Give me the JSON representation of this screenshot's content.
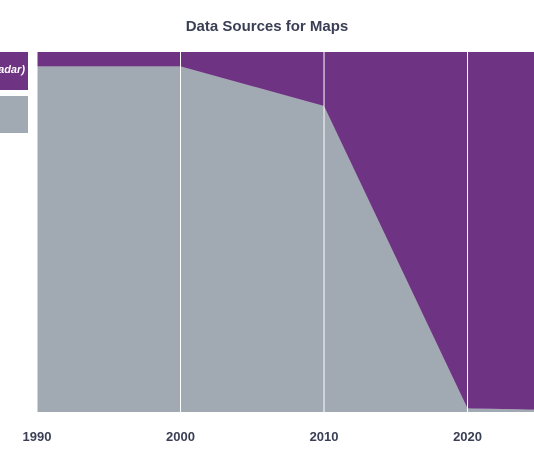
{
  "chart_data": {
    "type": "area",
    "stacked": true,
    "normalized": true,
    "title": "Data Sources for Maps",
    "xlabel": "",
    "ylabel": "",
    "x": [
      1990,
      2000,
      2010,
      2020,
      2027
    ],
    "xlim": [
      1990,
      2027
    ],
    "ylim": [
      0,
      100
    ],
    "x_ticks": [
      "1990",
      "2000",
      "2010",
      "2020"
    ],
    "series": [
      {
        "values": [
          96,
          96,
          85,
          1,
          0.5
        ],
        "color": "#a1aab2"
      },
      {
        "name": "…adar)",
        "values": [
          4,
          4,
          15,
          99,
          99.5
        ],
        "color": "#6f3383"
      }
    ],
    "grid": "vertical",
    "legend": "left"
  }
}
